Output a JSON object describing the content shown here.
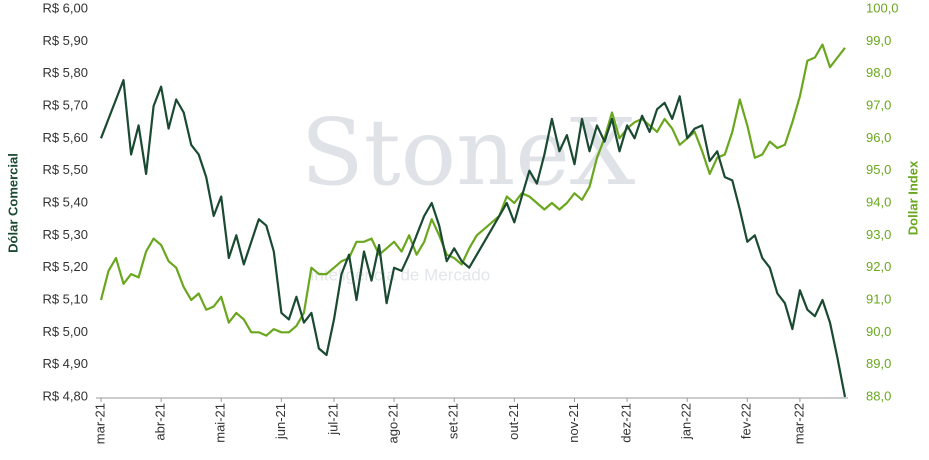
{
  "chart_data": {
    "type": "line",
    "watermark": "StoneX",
    "watermark_subtitle": "Inteligência de Mercado",
    "y_label": "Dólar Comercial",
    "y2_label": "Dollar Index",
    "categories": [
      "mar-21",
      null,
      null,
      null,
      null,
      null,
      null,
      null,
      "abr-21",
      null,
      null,
      null,
      null,
      null,
      null,
      null,
      "mai-21",
      null,
      null,
      null,
      null,
      null,
      null,
      null,
      "jun-21",
      null,
      null,
      null,
      null,
      null,
      null,
      "jul-21",
      null,
      null,
      null,
      null,
      null,
      null,
      null,
      "ago-21",
      null,
      null,
      null,
      null,
      null,
      null,
      null,
      "set-21",
      null,
      null,
      null,
      null,
      null,
      null,
      null,
      "out-21",
      null,
      null,
      null,
      null,
      null,
      null,
      null,
      "nov-21",
      null,
      null,
      null,
      null,
      null,
      null,
      "dez-21",
      null,
      null,
      null,
      null,
      null,
      null,
      null,
      "jan-22",
      null,
      null,
      null,
      null,
      null,
      null,
      null,
      "fev-22",
      null,
      null,
      null,
      null,
      null,
      null,
      "mar-22",
      null,
      null,
      null,
      null,
      null,
      null
    ],
    "series": [
      {
        "name": "Dólar Comercial",
        "color": "#1b4a33",
        "axis": "y",
        "values": [
          5.6,
          5.66,
          5.72,
          5.78,
          5.55,
          5.64,
          5.49,
          5.7,
          5.76,
          5.63,
          5.72,
          5.68,
          5.58,
          5.55,
          5.48,
          5.36,
          5.42,
          5.23,
          5.3,
          5.21,
          5.28,
          5.35,
          5.33,
          5.25,
          5.06,
          5.04,
          5.11,
          5.03,
          5.06,
          4.95,
          4.93,
          5.04,
          5.18,
          5.24,
          5.1,
          5.25,
          5.16,
          5.27,
          5.09,
          5.2,
          5.19,
          5.24,
          5.3,
          5.36,
          5.4,
          5.33,
          5.22,
          5.26,
          5.22,
          5.2,
          5.24,
          5.28,
          5.32,
          5.36,
          5.4,
          5.34,
          5.42,
          5.5,
          5.46,
          5.55,
          5.66,
          5.56,
          5.61,
          5.52,
          5.66,
          5.56,
          5.64,
          5.59,
          5.66,
          5.56,
          5.64,
          5.6,
          5.67,
          5.62,
          5.69,
          5.71,
          5.66,
          5.73,
          5.6,
          5.63,
          5.64,
          5.53,
          5.56,
          5.48,
          5.47,
          5.38,
          5.28,
          5.3,
          5.23,
          5.2,
          5.12,
          5.09,
          5.01,
          5.13,
          5.07,
          5.05,
          5.1,
          5.03,
          4.92,
          4.8
        ]
      },
      {
        "name": "Dollar Index",
        "color": "#6aa71f",
        "axis": "y2",
        "values": [
          91.0,
          91.9,
          92.3,
          91.5,
          91.8,
          91.7,
          92.5,
          92.9,
          92.7,
          92.2,
          92.0,
          91.4,
          91.0,
          91.2,
          90.7,
          90.8,
          91.1,
          90.3,
          90.6,
          90.4,
          90.0,
          90.0,
          89.9,
          90.1,
          90.0,
          90.0,
          90.2,
          90.6,
          92.0,
          91.8,
          91.8,
          92.0,
          92.2,
          92.3,
          92.8,
          92.8,
          92.9,
          92.4,
          92.6,
          92.8,
          92.5,
          93.0,
          92.4,
          92.8,
          93.5,
          93.0,
          92.4,
          92.3,
          92.1,
          92.6,
          93.0,
          93.2,
          93.4,
          93.6,
          94.2,
          94.0,
          94.3,
          94.2,
          94.0,
          93.8,
          94.0,
          93.8,
          94.0,
          94.3,
          94.1,
          94.5,
          95.4,
          96.0,
          96.8,
          96.0,
          96.3,
          96.5,
          96.6,
          96.4,
          96.2,
          96.6,
          96.3,
          95.8,
          96.0,
          96.2,
          95.6,
          94.9,
          95.4,
          95.5,
          96.2,
          97.2,
          96.4,
          95.4,
          95.5,
          95.9,
          95.7,
          95.8,
          96.5,
          97.3,
          98.4,
          98.5,
          98.9,
          98.2,
          98.5,
          98.8
        ]
      }
    ],
    "ylim": [
      4.8,
      6.0
    ],
    "yticks": [
      {
        "value": 4.8,
        "label": "R$ 4,80"
      },
      {
        "value": 4.9,
        "label": "R$ 4,90"
      },
      {
        "value": 5.0,
        "label": "R$ 5,00"
      },
      {
        "value": 5.1,
        "label": "R$ 5,10"
      },
      {
        "value": 5.2,
        "label": "R$ 5,20"
      },
      {
        "value": 5.3,
        "label": "R$ 5,30"
      },
      {
        "value": 5.4,
        "label": "R$ 5,40"
      },
      {
        "value": 5.5,
        "label": "R$ 5,50"
      },
      {
        "value": 5.6,
        "label": "R$ 5,60"
      },
      {
        "value": 5.7,
        "label": "R$ 5,70"
      },
      {
        "value": 5.8,
        "label": "R$ 5,80"
      },
      {
        "value": 5.9,
        "label": "R$ 5,90"
      },
      {
        "value": 6.0,
        "label": "R$ 6,00"
      }
    ],
    "y2lim": [
      88,
      100
    ],
    "y2ticks": [
      {
        "value": 88,
        "label": "88,0"
      },
      {
        "value": 89,
        "label": "89,0"
      },
      {
        "value": 90,
        "label": "90,0"
      },
      {
        "value": 91,
        "label": "91,0"
      },
      {
        "value": 92,
        "label": "92,0"
      },
      {
        "value": 93,
        "label": "93,0"
      },
      {
        "value": 94,
        "label": "94,0"
      },
      {
        "value": 95,
        "label": "95,0"
      },
      {
        "value": 96,
        "label": "96,0"
      },
      {
        "value": 97,
        "label": "97,0"
      },
      {
        "value": 98,
        "label": "98,0"
      },
      {
        "value": 99,
        "label": "99,0"
      },
      {
        "value": 100,
        "label": "100,0"
      }
    ],
    "grid": false
  }
}
